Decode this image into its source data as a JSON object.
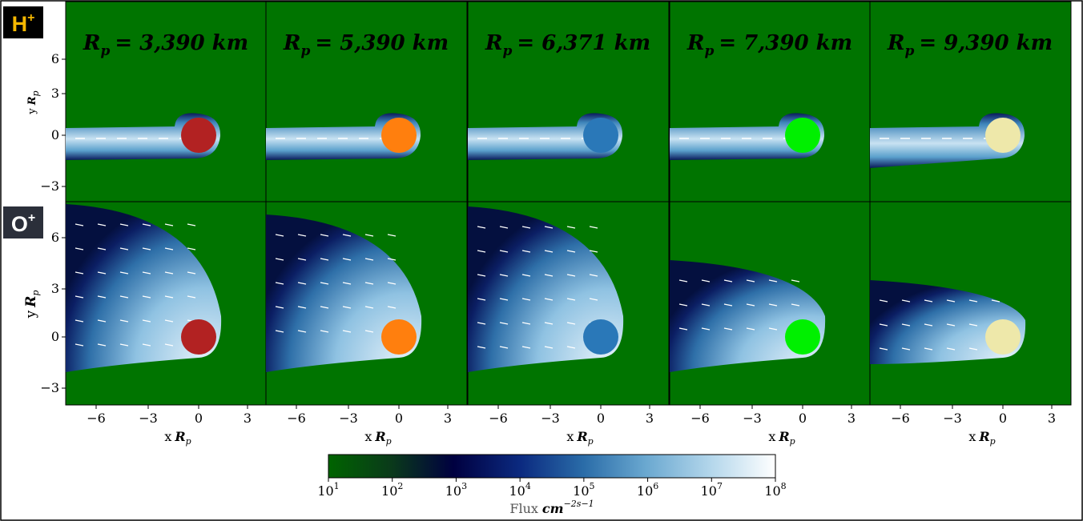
{
  "figure": {
    "rows": [
      {
        "ion": "H",
        "charge": "+"
      },
      {
        "ion": "O",
        "charge": "+"
      }
    ],
    "panels": [
      {
        "symbol": "R",
        "sub": "p",
        "text": "= 3,390 km"
      },
      {
        "symbol": "R",
        "sub": "p",
        "text": "= 5,390 km"
      },
      {
        "symbol": "R",
        "sub": "p",
        "text": "= 6,371 km"
      },
      {
        "symbol": "R",
        "sub": "p",
        "text": "= 7,390 km"
      },
      {
        "symbol": "R",
        "sub": "p",
        "text": "= 9,390 km"
      }
    ],
    "y_axis": {
      "label": "y",
      "symbol": "R",
      "sub": "p",
      "ticks": [
        "6",
        "3",
        "0",
        "−3"
      ]
    },
    "x_axis": {
      "label": "x",
      "symbol": "R",
      "sub": "p",
      "ticks": [
        "−6",
        "−3",
        "0",
        "3"
      ]
    },
    "colorbar": {
      "ticks": [
        {
          "base": "10",
          "exp": "1"
        },
        {
          "base": "10",
          "exp": "2"
        },
        {
          "base": "10",
          "exp": "3"
        },
        {
          "base": "10",
          "exp": "4"
        },
        {
          "base": "10",
          "exp": "5"
        },
        {
          "base": "10",
          "exp": "6"
        },
        {
          "base": "10",
          "exp": "7"
        },
        {
          "base": "10",
          "exp": "8"
        }
      ],
      "label": "Flux",
      "unit": "cm",
      "unit_exp": "−2s",
      "unit2_exp": "−1"
    }
  }
}
